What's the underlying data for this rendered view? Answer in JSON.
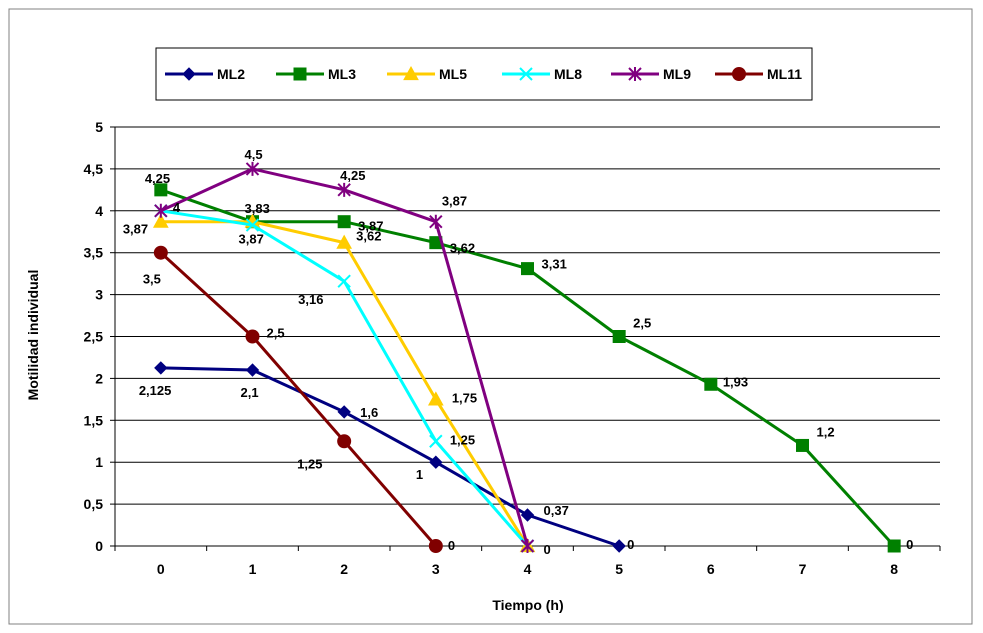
{
  "chart_data": {
    "type": "line",
    "xlabel": "Tiempo (h)",
    "ylabel": "Motilidad individual",
    "x": [
      0,
      1,
      2,
      3,
      4,
      5,
      6,
      7,
      8
    ],
    "x_tick_labels": [
      "0",
      "1",
      "2",
      "3",
      "4",
      "5",
      "6",
      "7",
      "8"
    ],
    "ylim": [
      0,
      5
    ],
    "y_ticks": [
      0,
      0.5,
      1,
      1.5,
      2,
      2.5,
      3,
      3.5,
      4,
      4.5,
      5
    ],
    "y_tick_labels": [
      "0",
      "0,5",
      "1",
      "1,5",
      "2",
      "2,5",
      "3",
      "3,5",
      "4",
      "4,5",
      "5"
    ],
    "grid": "horizontal",
    "legend_position": "top",
    "series": [
      {
        "name": "ML2",
        "color": "#000080",
        "marker": "diamond",
        "x": [
          0,
          1,
          2,
          3,
          4,
          5
        ],
        "values": [
          2.125,
          2.1,
          1.6,
          1,
          0.37,
          0
        ],
        "labels": [
          "2,125",
          "2,1",
          "1,6",
          "1",
          "0,37",
          "0"
        ]
      },
      {
        "name": "ML3",
        "color": "#008000",
        "marker": "square",
        "x": [
          0,
          1,
          2,
          3,
          4,
          5,
          6,
          7,
          8
        ],
        "values": [
          4.25,
          3.87,
          3.87,
          3.62,
          3.31,
          2.5,
          1.93,
          1.2,
          0
        ],
        "labels": [
          "4,25",
          "3,87",
          "3,87",
          "3,62",
          "3,31",
          "2,5",
          "1,93",
          "1,2",
          "0"
        ]
      },
      {
        "name": "ML5",
        "color": "#FFCC00",
        "marker": "triangle",
        "x": [
          0,
          1,
          2,
          3,
          4
        ],
        "values": [
          3.87,
          3.87,
          3.62,
          1.75,
          0
        ],
        "labels": [
          "3,87",
          "",
          "3,62",
          "1,75",
          ""
        ]
      },
      {
        "name": "ML8",
        "color": "#00FFFF",
        "marker": "x",
        "x": [
          0,
          1,
          2,
          3,
          4
        ],
        "values": [
          4,
          3.83,
          3.16,
          1.25,
          0
        ],
        "labels": [
          "4",
          "3,83",
          "3,16",
          "1,25",
          ""
        ]
      },
      {
        "name": "ML9",
        "color": "#800080",
        "marker": "star",
        "x": [
          0,
          1,
          2,
          3,
          4
        ],
        "values": [
          4,
          4.5,
          4.25,
          3.87,
          0
        ],
        "labels": [
          "",
          "4,5",
          "4,25",
          "3,87",
          "0"
        ]
      },
      {
        "name": "ML11",
        "color": "#800000",
        "marker": "circle",
        "x": [
          0,
          1,
          2,
          3
        ],
        "values": [
          3.5,
          2.5,
          1.25,
          0
        ],
        "labels": [
          "3,5",
          "2,5",
          "1,25",
          "0"
        ]
      }
    ]
  }
}
